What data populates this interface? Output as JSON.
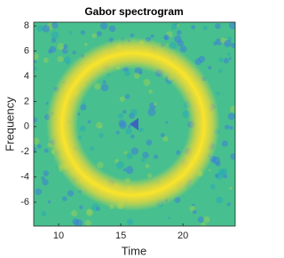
{
  "chart_data": {
    "type": "spectrogram",
    "title": "Gabor spectrogram",
    "x_label": "Time",
    "y_label": "Frequency",
    "xlim": [
      8,
      24.2
    ],
    "ylim": [
      -7.9,
      8.3
    ],
    "xticks": [
      10,
      15,
      20
    ],
    "yticks": [
      -6,
      -4,
      -2,
      0,
      2,
      4,
      6,
      8
    ]
  }
}
